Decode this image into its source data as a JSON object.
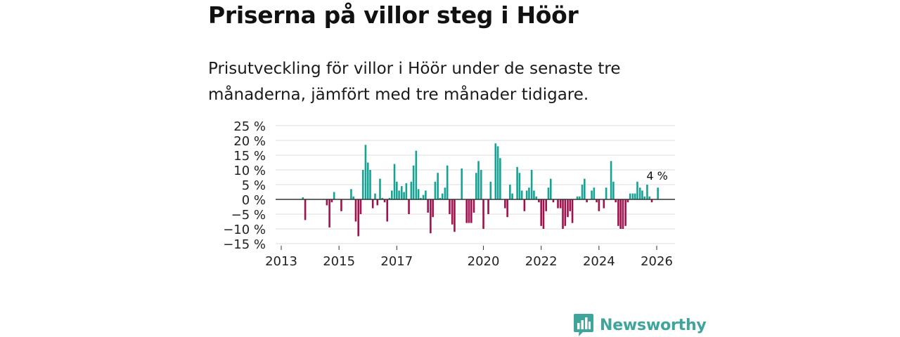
{
  "title": "Priserna på villor steg i Höör",
  "subtitle": "Prisutveckling för villor i Höör under de senaste tre månaderna, jämfört med tre månader tidigare.",
  "brand": {
    "name": "Newsworthy",
    "icon": "bar-chart-speech-icon"
  },
  "colors": {
    "positive": "#16a395",
    "negative": "#a1114e",
    "grid": "#dddddd",
    "zero": "#333333"
  },
  "chart_data": {
    "type": "bar",
    "title": "Priserna på villor steg i Höör",
    "xlabel": "",
    "ylabel": "",
    "ylim": [
      -15,
      25
    ],
    "yticks": [
      25,
      20,
      15,
      10,
      5,
      0,
      -5,
      -10,
      -15
    ],
    "ytick_labels": [
      "25 %",
      "20 %",
      "15 %",
      "10 %",
      "5 %",
      "0 %",
      "−5 %",
      "−10 %",
      "−15 %"
    ],
    "xlim": [
      2013,
      2026.35
    ],
    "xticks": [
      2013,
      2015,
      2017,
      2020,
      2022,
      2024,
      2026
    ],
    "xtick_labels": [
      "2013",
      "2015",
      "2017",
      "2020",
      "2022",
      "2024",
      "2026"
    ],
    "annotation": {
      "text": "4 %",
      "x": 2026.04
    },
    "series": [
      {
        "name": "Prisutveckling",
        "x": [
          2013.75,
          2013.83,
          2014.58,
          2014.67,
          2014.75,
          2014.83,
          2015.08,
          2015.42,
          2015.5,
          2015.58,
          2015.67,
          2015.75,
          2015.83,
          2015.92,
          2016.0,
          2016.08,
          2016.17,
          2016.25,
          2016.33,
          2016.42,
          2016.5,
          2016.58,
          2016.67,
          2016.75,
          2016.83,
          2016.92,
          2017.0,
          2017.08,
          2017.17,
          2017.25,
          2017.33,
          2017.42,
          2017.5,
          2017.58,
          2017.67,
          2017.75,
          2017.83,
          2017.92,
          2018.0,
          2018.08,
          2018.17,
          2018.25,
          2018.33,
          2018.42,
          2018.5,
          2018.58,
          2018.67,
          2018.75,
          2018.83,
          2018.92,
          2019.0,
          2019.08,
          2019.17,
          2019.25,
          2019.33,
          2019.42,
          2019.5,
          2019.58,
          2019.67,
          2019.75,
          2019.83,
          2019.92,
          2020.0,
          2020.08,
          2020.17,
          2020.25,
          2020.33,
          2020.42,
          2020.5,
          2020.58,
          2020.67,
          2020.75,
          2020.83,
          2020.92,
          2021.0,
          2021.08,
          2021.17,
          2021.25,
          2021.33,
          2021.42,
          2021.5,
          2021.58,
          2021.67,
          2021.75,
          2021.83,
          2021.92,
          2022.0,
          2022.08,
          2022.17,
          2022.25,
          2022.33,
          2022.42,
          2022.5,
          2022.58,
          2022.67,
          2022.75,
          2022.83,
          2022.92,
          2023.0,
          2023.08,
          2023.17,
          2023.25,
          2023.33,
          2023.42,
          2023.5,
          2023.58,
          2023.67,
          2023.75,
          2023.83,
          2023.92,
          2024.0,
          2024.08,
          2024.17,
          2024.25,
          2024.33,
          2024.42,
          2024.5,
          2024.58,
          2024.67,
          2024.75,
          2024.83,
          2024.92,
          2025.0,
          2025.08,
          2025.17,
          2025.25,
          2025.33,
          2025.42,
          2025.5,
          2025.58,
          2025.67,
          2025.75,
          2025.83,
          2025.92,
          2026.0,
          2026.04
        ],
        "values": [
          0.7,
          -7,
          -2,
          -9.5,
          -1,
          2.5,
          -4,
          3.5,
          1,
          -7.5,
          -12.5,
          -5,
          10,
          18.5,
          12.5,
          10,
          -3,
          2,
          -2,
          7,
          0.5,
          -1,
          -7.5,
          0.5,
          3,
          12,
          6,
          3,
          4.5,
          2.5,
          5.5,
          -5,
          6,
          11.5,
          16.5,
          3.5,
          0.5,
          1.5,
          3,
          -4.5,
          -11.5,
          -6,
          6,
          9,
          0.5,
          2,
          4,
          11.5,
          -5,
          -8.5,
          -11,
          0,
          0,
          10.5,
          0,
          -8,
          -8,
          -8,
          -4.5,
          9,
          13,
          10,
          -10,
          0,
          -5,
          6,
          0,
          19,
          18,
          14,
          0,
          -3,
          -6,
          5,
          2,
          0,
          11,
          9,
          3,
          -4,
          3,
          4,
          10,
          3,
          1,
          -1,
          -9,
          -10,
          -4,
          4,
          7,
          -1,
          0,
          -3,
          -3,
          -10,
          -9,
          -6,
          -4,
          -8,
          0,
          1,
          1,
          5,
          7,
          -1,
          0,
          3,
          4,
          -1,
          -4,
          0,
          -3,
          4,
          0,
          13,
          6,
          -1,
          -9,
          -10,
          -10,
          -9,
          -1,
          2,
          2,
          2,
          6,
          4,
          3,
          1,
          5,
          1,
          -1,
          0,
          0,
          4
        ]
      }
    ]
  }
}
